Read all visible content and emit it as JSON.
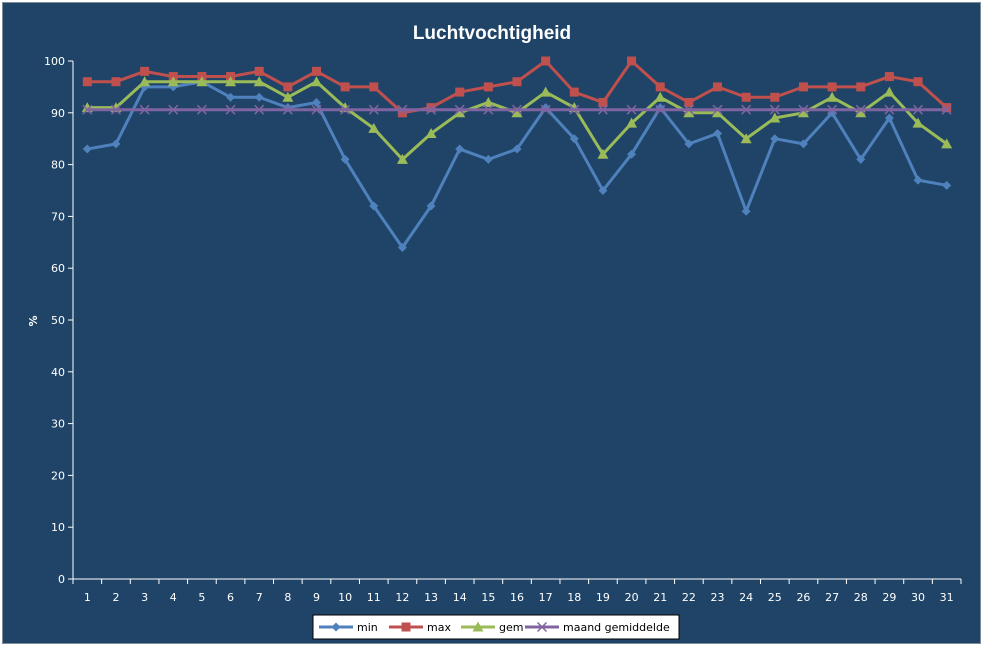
{
  "chart_data": {
    "type": "line",
    "title": "Luchtvochtigheid",
    "xlabel": "",
    "ylabel": "%",
    "ylim": [
      0,
      100
    ],
    "yticks": [
      0,
      10,
      20,
      30,
      40,
      50,
      60,
      70,
      80,
      90,
      100
    ],
    "categories": [
      "1",
      "2",
      "3",
      "4",
      "5",
      "6",
      "7",
      "8",
      "9",
      "10",
      "11",
      "12",
      "13",
      "14",
      "15",
      "16",
      "17",
      "18",
      "19",
      "20",
      "21",
      "22",
      "23",
      "24",
      "25",
      "26",
      "27",
      "28",
      "29",
      "30",
      "31"
    ],
    "grid": false,
    "legend_position": "bottom",
    "series": [
      {
        "name": "min",
        "color": "#4f81bd",
        "marker": "diamond",
        "values": [
          83,
          84,
          95,
          95,
          96,
          93,
          93,
          91,
          92,
          81,
          72,
          64,
          72,
          83,
          81,
          83,
          91,
          85,
          75,
          82,
          91,
          84,
          86,
          71,
          85,
          84,
          90,
          81,
          89,
          77,
          76
        ]
      },
      {
        "name": "max",
        "color": "#c0504d",
        "marker": "square",
        "values": [
          96,
          96,
          98,
          97,
          97,
          97,
          98,
          95,
          98,
          95,
          95,
          90,
          91,
          94,
          95,
          96,
          100,
          94,
          92,
          100,
          95,
          92,
          95,
          93,
          93,
          95,
          95,
          95,
          97,
          96,
          91
        ]
      },
      {
        "name": "gem",
        "color": "#9bbb59",
        "marker": "triangle",
        "values": [
          91,
          91,
          96,
          96,
          96,
          96,
          96,
          93,
          96,
          91,
          87,
          81,
          86,
          90,
          92,
          90,
          94,
          91,
          82,
          88,
          93,
          90,
          90,
          85,
          89,
          90,
          93,
          90,
          94,
          88,
          84
        ]
      },
      {
        "name": "maand gemiddelde",
        "color": "#8064a2",
        "marker": "x",
        "values": [
          90.6,
          90.6,
          90.6,
          90.6,
          90.6,
          90.6,
          90.6,
          90.6,
          90.6,
          90.6,
          90.6,
          90.6,
          90.6,
          90.6,
          90.6,
          90.6,
          90.6,
          90.6,
          90.6,
          90.6,
          90.6,
          90.6,
          90.6,
          90.6,
          90.6,
          90.6,
          90.6,
          90.6,
          90.6,
          90.6,
          90.6
        ]
      }
    ]
  },
  "colors": {
    "background": "#1f4467",
    "axis": "#ffffff",
    "legend_background": "#ffffff"
  }
}
